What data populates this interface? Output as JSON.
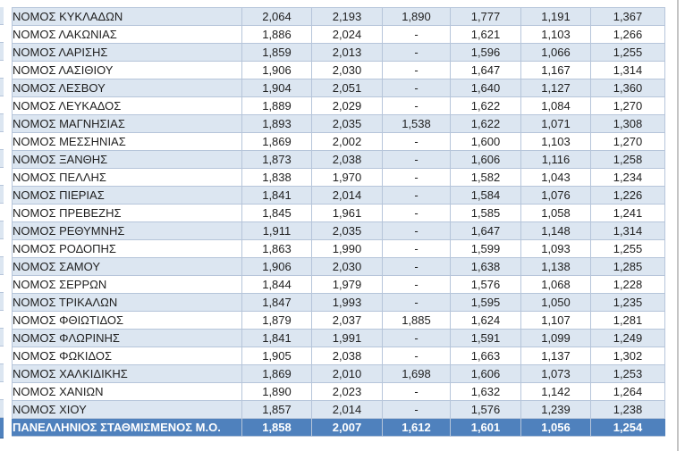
{
  "colors": {
    "band_fill": "#dce6f1",
    "plain_fill": "#ffffff",
    "grid_border": "#b6c5da",
    "body_text": "#1f1f1f",
    "footer_fill": "#4f81bd",
    "footer_separator": "#7da0cc",
    "footer_bottom_edge": "#38649b",
    "footer_text": "#ffffff",
    "pane_edge": "#c4c4c4"
  },
  "table": {
    "rows": [
      {
        "label": "ΝΟΜΟΣ ΚΥΚΛΑΔΩΝ",
        "values": [
          "2,064",
          "2,193",
          "1,890",
          "1,777",
          "1,191",
          "1,367"
        ]
      },
      {
        "label": "ΝΟΜΟΣ ΛΑΚΩΝΙΑΣ",
        "values": [
          "1,886",
          "2,024",
          "-",
          "1,621",
          "1,103",
          "1,266"
        ]
      },
      {
        "label": "ΝΟΜΟΣ ΛΑΡΙΣΗΣ",
        "values": [
          "1,859",
          "2,013",
          "-",
          "1,596",
          "1,066",
          "1,255"
        ]
      },
      {
        "label": "ΝΟΜΟΣ ΛΑΣΙΘΙΟΥ",
        "values": [
          "1,906",
          "2,030",
          "-",
          "1,647",
          "1,167",
          "1,314"
        ]
      },
      {
        "label": "ΝΟΜΟΣ ΛΕΣΒΟΥ",
        "values": [
          "1,904",
          "2,051",
          "-",
          "1,640",
          "1,127",
          "1,360"
        ]
      },
      {
        "label": "ΝΟΜΟΣ ΛΕΥΚΑΔΟΣ",
        "values": [
          "1,889",
          "2,029",
          "-",
          "1,622",
          "1,084",
          "1,270"
        ]
      },
      {
        "label": "ΝΟΜΟΣ ΜΑΓΝΗΣΙΑΣ",
        "values": [
          "1,893",
          "2,035",
          "1,538",
          "1,622",
          "1,071",
          "1,308"
        ]
      },
      {
        "label": "ΝΟΜΟΣ ΜΕΣΣΗΝΙΑΣ",
        "values": [
          "1,869",
          "2,002",
          "-",
          "1,600",
          "1,103",
          "1,270"
        ]
      },
      {
        "label": "ΝΟΜΟΣ ΞΑΝΘΗΣ",
        "values": [
          "1,873",
          "2,038",
          "-",
          "1,606",
          "1,116",
          "1,258"
        ]
      },
      {
        "label": "ΝΟΜΟΣ ΠΕΛΛΗΣ",
        "values": [
          "1,838",
          "1,970",
          "-",
          "1,582",
          "1,043",
          "1,234"
        ]
      },
      {
        "label": "ΝΟΜΟΣ ΠΙΕΡΙΑΣ",
        "values": [
          "1,841",
          "2,014",
          "-",
          "1,584",
          "1,076",
          "1,226"
        ]
      },
      {
        "label": "ΝΟΜΟΣ ΠΡΕΒΕΖΗΣ",
        "values": [
          "1,845",
          "1,961",
          "-",
          "1,585",
          "1,058",
          "1,241"
        ]
      },
      {
        "label": "ΝΟΜΟΣ ΡΕΘΥΜΝΗΣ",
        "values": [
          "1,911",
          "2,035",
          "-",
          "1,647",
          "1,148",
          "1,314"
        ]
      },
      {
        "label": "ΝΟΜΟΣ ΡΟΔΟΠΗΣ",
        "values": [
          "1,863",
          "1,990",
          "-",
          "1,599",
          "1,093",
          "1,255"
        ]
      },
      {
        "label": "ΝΟΜΟΣ ΣΑΜΟΥ",
        "values": [
          "1,906",
          "2,030",
          "-",
          "1,638",
          "1,138",
          "1,285"
        ]
      },
      {
        "label": "ΝΟΜΟΣ ΣΕΡΡΩΝ",
        "values": [
          "1,844",
          "1,979",
          "-",
          "1,576",
          "1,068",
          "1,228"
        ]
      },
      {
        "label": "ΝΟΜΟΣ ΤΡΙΚΑΛΩΝ",
        "values": [
          "1,847",
          "1,993",
          "-",
          "1,595",
          "1,050",
          "1,235"
        ]
      },
      {
        "label": "ΝΟΜΟΣ ΦΘΙΩΤΙΔΟΣ",
        "values": [
          "1,879",
          "2,037",
          "1,885",
          "1,624",
          "1,107",
          "1,281"
        ]
      },
      {
        "label": "ΝΟΜΟΣ ΦΛΩΡΙΝΗΣ",
        "values": [
          "1,841",
          "1,991",
          "-",
          "1,591",
          "1,099",
          "1,249"
        ]
      },
      {
        "label": "ΝΟΜΟΣ ΦΩΚΙΔΟΣ",
        "values": [
          "1,905",
          "2,038",
          "-",
          "1,663",
          "1,137",
          "1,302"
        ]
      },
      {
        "label": "ΝΟΜΟΣ ΧΑΛΚΙΔΙΚΗΣ",
        "values": [
          "1,869",
          "2,010",
          "1,698",
          "1,606",
          "1,073",
          "1,253"
        ]
      },
      {
        "label": "ΝΟΜΟΣ ΧΑΝΙΩΝ",
        "values": [
          "1,890",
          "2,023",
          "-",
          "1,632",
          "1,142",
          "1,264"
        ]
      },
      {
        "label": "ΝΟΜΟΣ ΧΙΟΥ",
        "values": [
          "1,857",
          "2,014",
          "-",
          "1,576",
          "1,239",
          "1,238"
        ]
      }
    ],
    "footer": {
      "label": "ΠΑΝΕΛΛΗΝΙΟΣ ΣΤΑΘΜΙΣΜΕΝΟΣ Μ.Ο.",
      "values": [
        "1,858",
        "2,007",
        "1,612",
        "1,601",
        "1,056",
        "1,254"
      ]
    }
  }
}
